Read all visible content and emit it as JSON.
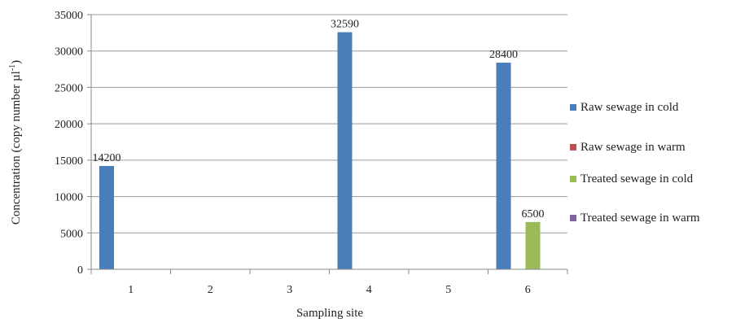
{
  "chart_data": {
    "type": "bar",
    "categories": [
      "1",
      "2",
      "3",
      "4",
      "5",
      "6"
    ],
    "series": [
      {
        "name": "Raw sewage in cold",
        "color": "#4a7ebb",
        "values": [
          14200,
          0,
          0,
          32590,
          0,
          28400
        ]
      },
      {
        "name": "Raw sewage in warm",
        "color": "#c0504d",
        "values": [
          0,
          0,
          0,
          0,
          0,
          0
        ]
      },
      {
        "name": "Treated sewage in cold",
        "color": "#9bbb59",
        "values": [
          0,
          0,
          0,
          0,
          0,
          6500
        ]
      },
      {
        "name": "Treated sewage in warm",
        "color": "#8064a2",
        "values": [
          0,
          0,
          0,
          0,
          0,
          0
        ]
      }
    ],
    "data_labels": [
      {
        "series": 0,
        "category": 0,
        "text": "14200"
      },
      {
        "series": 0,
        "category": 3,
        "text": "32590"
      },
      {
        "series": 0,
        "category": 5,
        "text": "28400"
      },
      {
        "series": 2,
        "category": 5,
        "text": "6500"
      }
    ],
    "xlabel": "Sampling site",
    "ylabel": "Concentration (copy number µl",
    "ylabel_superscript": "-1",
    "ylabel_suffix": ")",
    "ylim": [
      0,
      35000
    ],
    "yticks": [
      "0",
      "5000",
      "10000",
      "15000",
      "20000",
      "25000",
      "30000",
      "35000"
    ],
    "ytick_values": [
      0,
      5000,
      10000,
      15000,
      20000,
      25000,
      30000,
      35000
    ],
    "grid": "horizontal",
    "legend_position": "right"
  }
}
